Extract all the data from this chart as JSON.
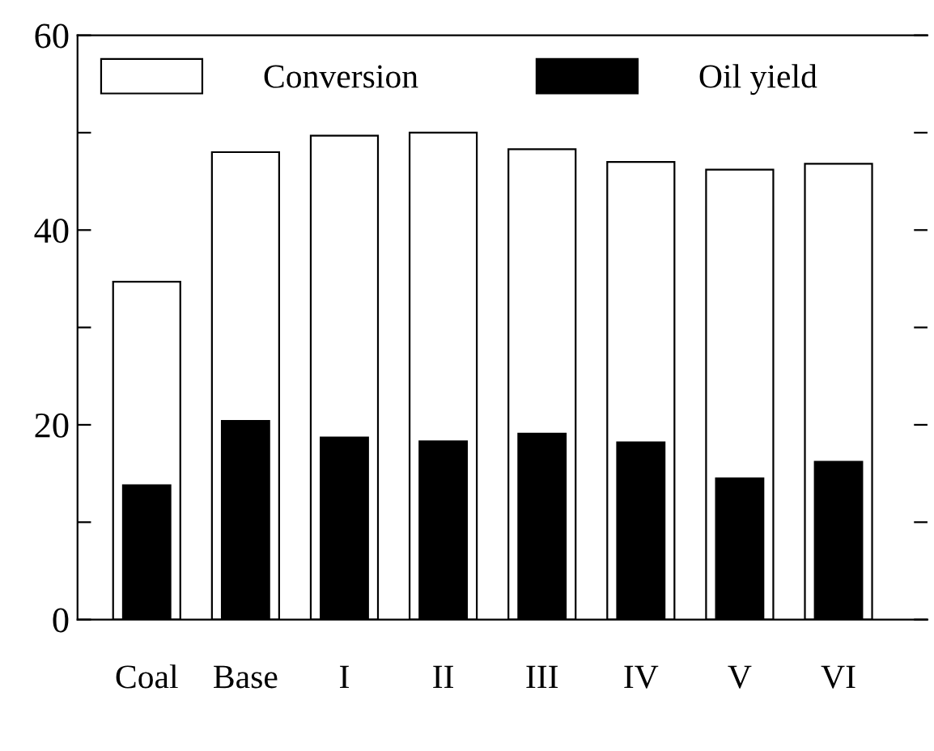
{
  "chart_data": {
    "type": "bar",
    "categories": [
      "Coal",
      "Base",
      "I",
      "II",
      "III",
      "IV",
      "V",
      "VI"
    ],
    "series": [
      {
        "name": "Conversion",
        "color": "#ffffff",
        "values": [
          34.7,
          48.0,
          49.7,
          50.0,
          48.3,
          47.0,
          46.2,
          46.8
        ]
      },
      {
        "name": "Oil yield",
        "color": "#000000",
        "values": [
          13.8,
          20.4,
          18.7,
          18.3,
          19.1,
          18.2,
          14.5,
          16.2
        ]
      }
    ],
    "ylim": [
      0,
      60
    ],
    "yticks": [
      0,
      {
        "value": 10,
        "label": null
      },
      20,
      {
        "value": 30,
        "label": null
      },
      40,
      {
        "value": 50,
        "label": null
      },
      60
    ],
    "legend": "top left",
    "grid": false
  }
}
